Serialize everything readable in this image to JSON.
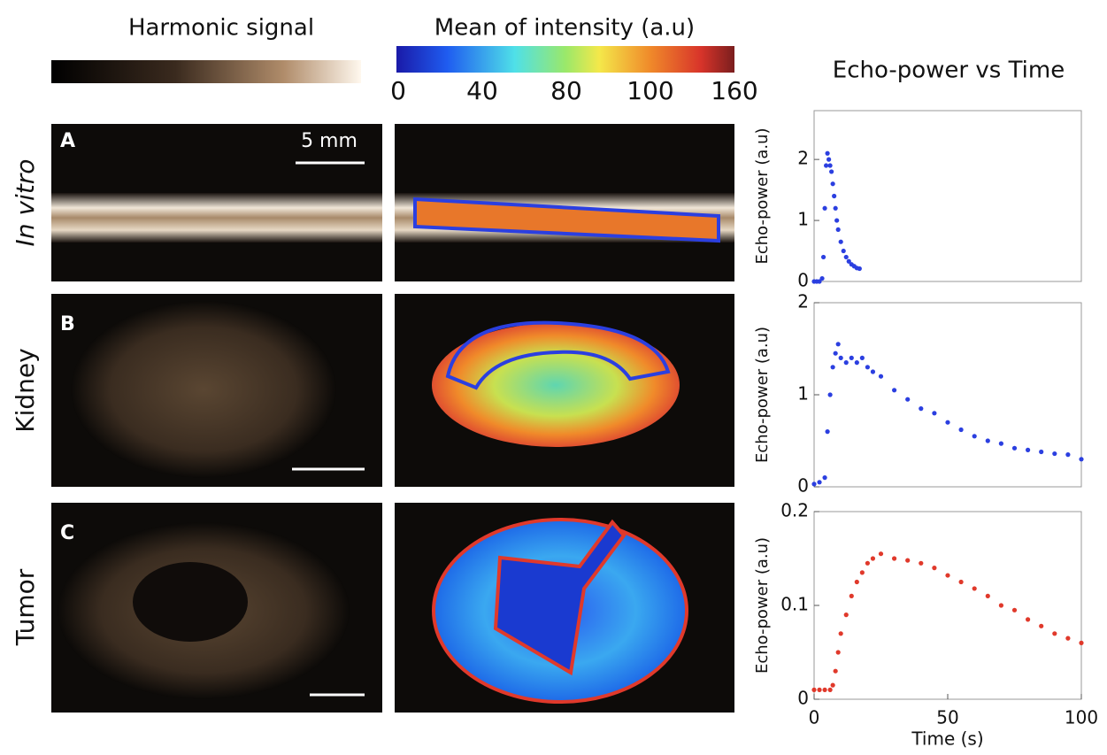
{
  "figure": {
    "harmonic_label": "Harmonic signal",
    "intensity_label": "Mean of intensity (a.u)",
    "colorbar_ticks": [
      0,
      40,
      80,
      100,
      160
    ],
    "rows": [
      "In vitro",
      "Kidney",
      "Tumor"
    ],
    "panels": [
      "A",
      "B",
      "C"
    ],
    "scale_bar": "5 mm"
  },
  "chart_data": [
    {
      "type": "scatter",
      "title": "Echo-power vs Time",
      "ylabel": "Echo-power (a.u)",
      "xlim": [
        0,
        100
      ],
      "ylim": [
        0,
        2.8
      ],
      "yticks": [
        0,
        1,
        2
      ],
      "series": [
        {
          "color": "#2b3fe0",
          "x": [
            0,
            1,
            2,
            3,
            3.5,
            4,
            4.5,
            5,
            5.5,
            6,
            6.5,
            7,
            7.5,
            8,
            8.5,
            9,
            10,
            11,
            12,
            13,
            14,
            15,
            16,
            17
          ],
          "values": [
            0,
            0,
            0,
            0.05,
            0.4,
            1.2,
            1.9,
            2.1,
            2.0,
            1.9,
            1.8,
            1.6,
            1.4,
            1.2,
            1.0,
            0.85,
            0.65,
            0.5,
            0.4,
            0.33,
            0.28,
            0.25,
            0.22,
            0.21
          ]
        }
      ]
    },
    {
      "type": "scatter",
      "ylabel": "Echo-power (a.u)",
      "xlim": [
        0,
        100
      ],
      "ylim": [
        0,
        2
      ],
      "yticks": [
        0,
        1,
        2
      ],
      "series": [
        {
          "color": "#2b3fe0",
          "x": [
            0,
            2,
            4,
            5,
            6,
            7,
            8,
            9,
            10,
            12,
            14,
            16,
            18,
            20,
            22,
            25,
            30,
            35,
            40,
            45,
            50,
            55,
            60,
            65,
            70,
            75,
            80,
            85,
            90,
            95,
            100
          ],
          "values": [
            0.03,
            0.05,
            0.1,
            0.6,
            1.0,
            1.3,
            1.45,
            1.55,
            1.4,
            1.35,
            1.4,
            1.35,
            1.4,
            1.3,
            1.25,
            1.2,
            1.05,
            0.95,
            0.85,
            0.8,
            0.7,
            0.62,
            0.55,
            0.5,
            0.47,
            0.42,
            0.4,
            0.38,
            0.36,
            0.35,
            0.3
          ]
        }
      ]
    },
    {
      "type": "scatter",
      "ylabel": "Echo-power (a.u)",
      "xlabel": "Time (s)",
      "xlim": [
        0,
        100
      ],
      "ylim": [
        0,
        0.2
      ],
      "yticks": [
        0,
        0.1,
        0.2
      ],
      "xticks": [
        0,
        50,
        100
      ],
      "series": [
        {
          "color": "#e0392b",
          "x": [
            0,
            2,
            4,
            6,
            7,
            8,
            9,
            10,
            12,
            14,
            16,
            18,
            20,
            22,
            25,
            30,
            35,
            40,
            45,
            50,
            55,
            60,
            65,
            70,
            75,
            80,
            85,
            90,
            95,
            100
          ],
          "values": [
            0.01,
            0.01,
            0.01,
            0.01,
            0.015,
            0.03,
            0.05,
            0.07,
            0.09,
            0.11,
            0.125,
            0.135,
            0.145,
            0.15,
            0.155,
            0.15,
            0.148,
            0.145,
            0.14,
            0.132,
            0.125,
            0.118,
            0.11,
            0.1,
            0.095,
            0.085,
            0.078,
            0.07,
            0.065,
            0.06
          ]
        }
      ]
    }
  ]
}
